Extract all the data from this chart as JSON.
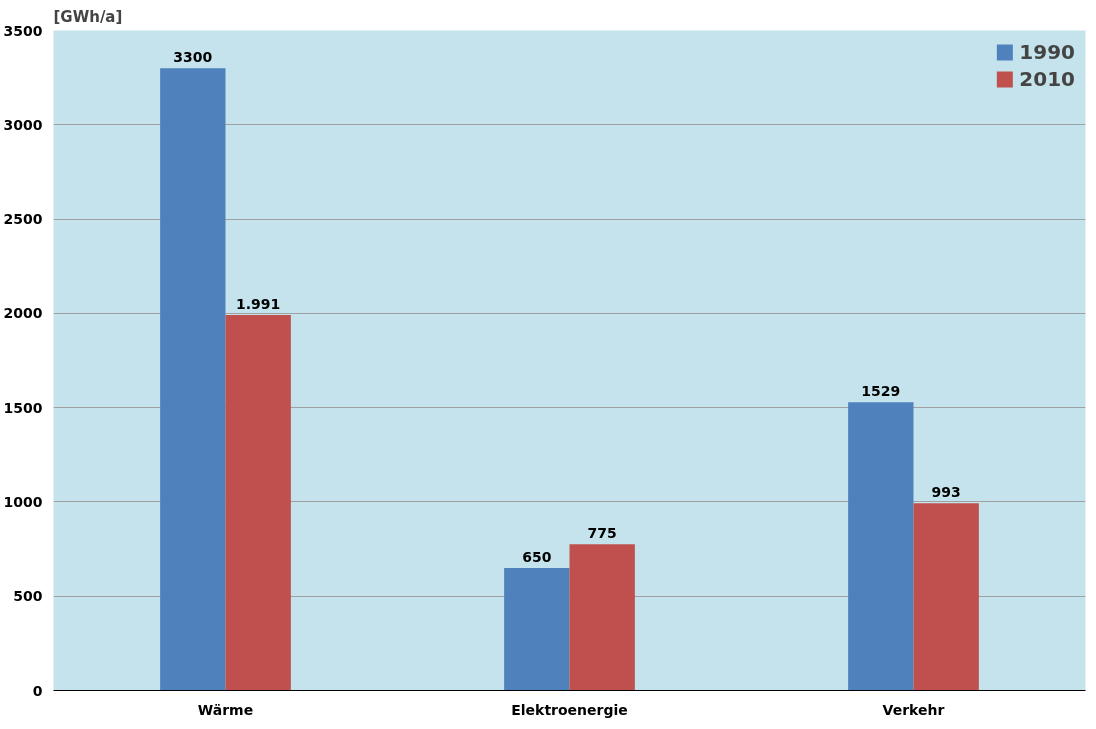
{
  "chart_data": {
    "type": "bar",
    "ylabel": "[GWh/a]",
    "categories": [
      "Wärme",
      "Elektroenergie",
      "Verkehr"
    ],
    "series": [
      {
        "name": "1990",
        "color": "#4f81bd",
        "values": [
          3300,
          650,
          1529
        ],
        "value_labels": [
          "3300",
          "650",
          "1529"
        ]
      },
      {
        "name": "2010",
        "color": "#c0504d",
        "values": [
          1991,
          775,
          993
        ],
        "value_labels": [
          "1.991",
          "775",
          "993"
        ]
      }
    ],
    "ylim": [
      0,
      3500
    ],
    "yticks": [
      0,
      500,
      1000,
      1500,
      2000,
      2500,
      3000,
      3500
    ],
    "grid": "y",
    "legend": "top right"
  }
}
